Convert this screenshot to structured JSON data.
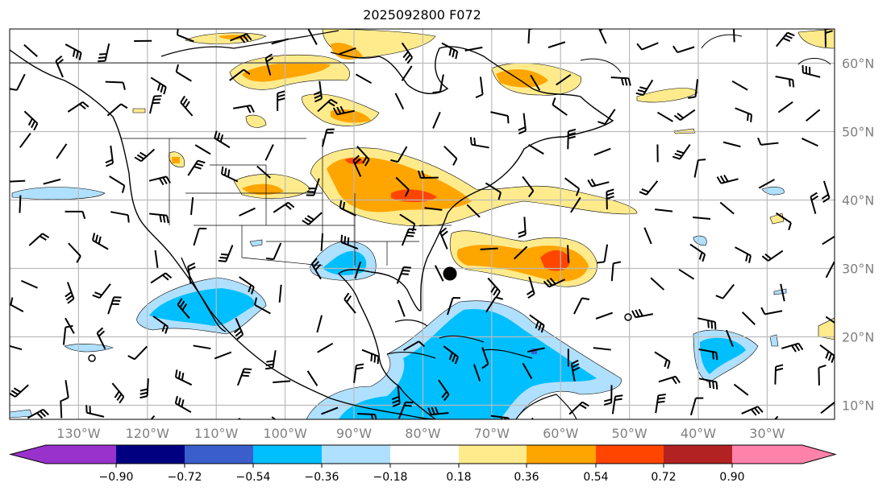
{
  "title": "2025092800 F072",
  "lon_labels": [
    "130°W",
    "120°W",
    "110°W",
    "100°W",
    "90°W",
    "80°W",
    "70°W",
    "60°W",
    "50°W",
    "40°W",
    "30°W"
  ],
  "lat_labels": [
    "60°N",
    "50°N",
    "40°N",
    "30°N",
    "20°N",
    "10°N"
  ],
  "colorbar": {
    "ticks": [
      "−0.90",
      "−0.72",
      "−0.54",
      "−0.36",
      "−0.18",
      "0.18",
      "0.36",
      "0.54",
      "0.72",
      "0.90"
    ],
    "colors": [
      "#9932CC",
      "#000080",
      "#3A5FCD",
      "#00BFFF",
      "#B0E0FF",
      "#FFFFFF",
      "#FFEB8C",
      "#FFA500",
      "#FF4500",
      "#B22222",
      "#FF82AB"
    ]
  },
  "shading_colors": {
    "pos1": "#FFEB8C",
    "pos2": "#FFA500",
    "pos3": "#FF4500",
    "neg1": "#B0E0FF",
    "neg2": "#00BFFF",
    "neg3": "#3A5FCD"
  }
}
